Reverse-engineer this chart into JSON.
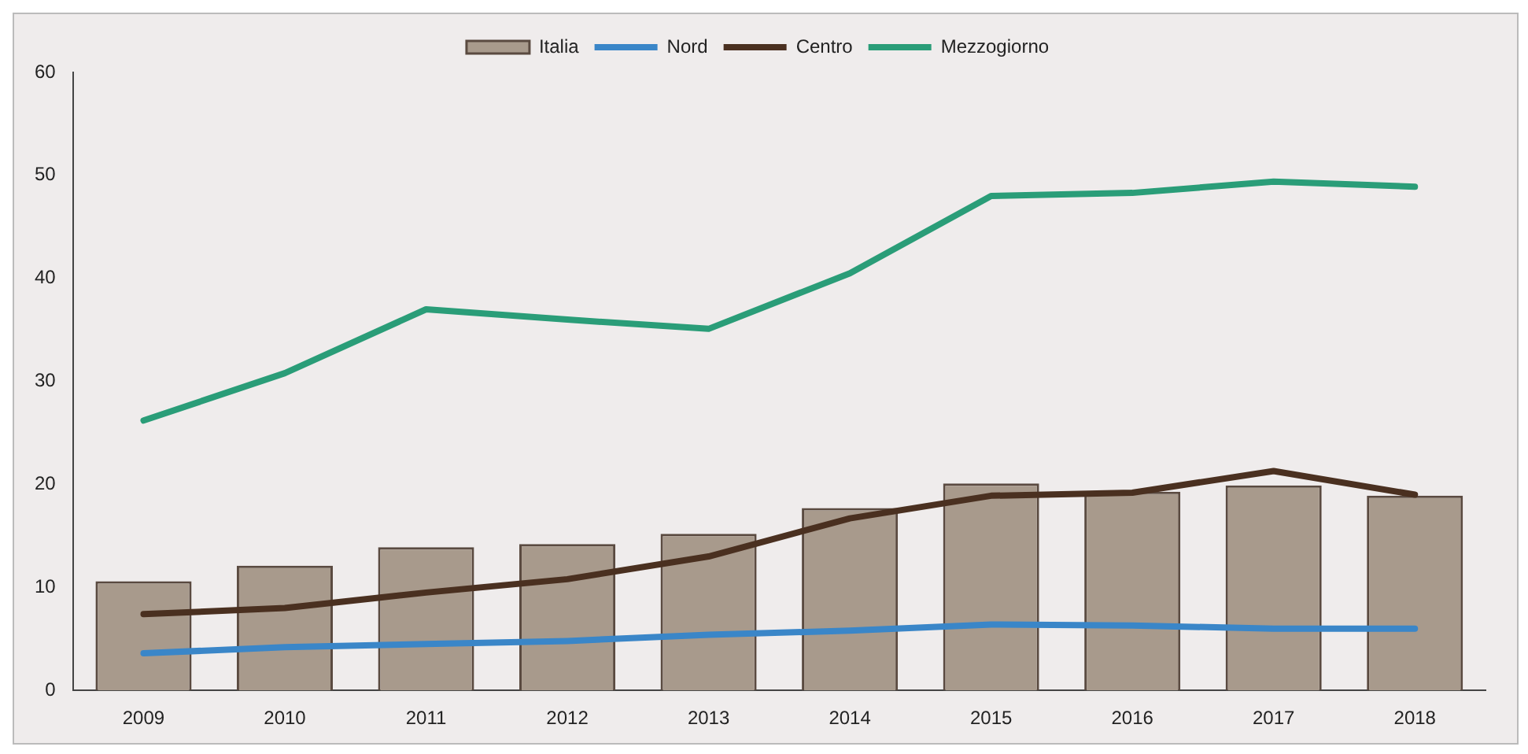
{
  "chart_data": {
    "type": "bar",
    "categories": [
      "2009",
      "2010",
      "2011",
      "2012",
      "2013",
      "2014",
      "2015",
      "2016",
      "2017",
      "2018"
    ],
    "series": [
      {
        "name": "Italia",
        "color": "#a89a8c",
        "values": [
          10.6,
          12.1,
          13.9,
          14.2,
          15.2,
          17.7,
          20.1,
          19.3,
          19.9,
          18.9
        ]
      },
      {
        "name": "Nord",
        "type": "line",
        "color": "#3a86c8",
        "values": [
          3.6,
          4.2,
          4.5,
          4.8,
          5.4,
          5.8,
          6.4,
          6.3,
          6.0,
          6.0
        ]
      },
      {
        "name": "Centro",
        "type": "line",
        "color": "#4a3020",
        "values": [
          7.4,
          8.0,
          9.5,
          10.8,
          13.0,
          16.7,
          18.9,
          19.2,
          21.3,
          19.0
        ]
      },
      {
        "name": "Mezzogiorno",
        "type": "line",
        "color": "#2a9d78",
        "values": [
          26.2,
          30.8,
          37.0,
          36.0,
          35.1,
          40.5,
          48.0,
          48.3,
          49.4,
          48.9
        ]
      }
    ],
    "ylim": [
      0,
      60
    ],
    "yticks": [
      0,
      10,
      20,
      30,
      40,
      50,
      60
    ],
    "grid": false,
    "legend": "top",
    "marker": "none"
  }
}
